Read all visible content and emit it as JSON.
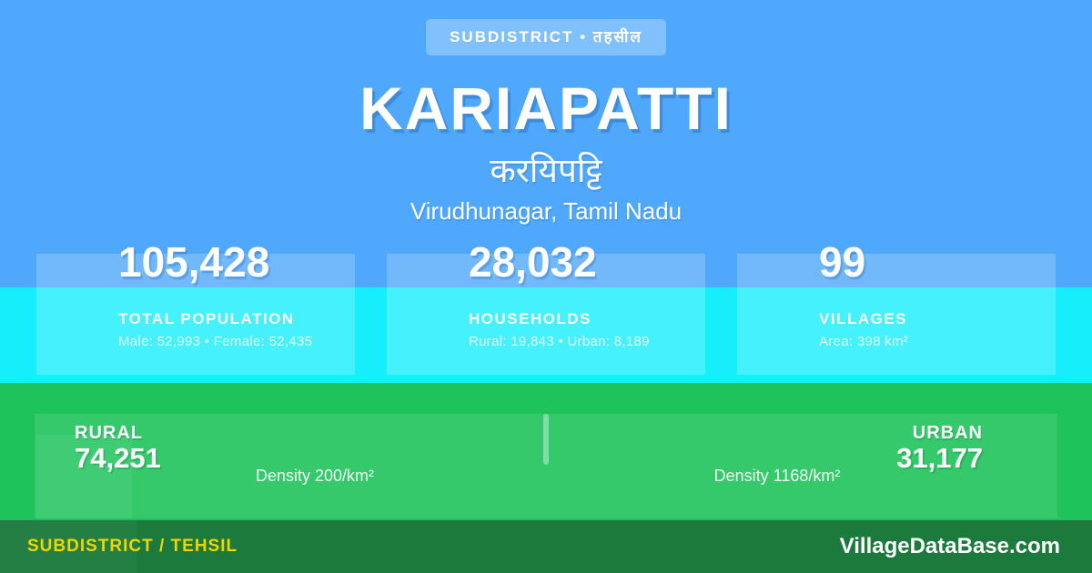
{
  "badge": {
    "label": "SUBDISTRICT • तहसील"
  },
  "title": "KARIAPATTI",
  "title_hindi": "करयिपट्टि",
  "location": "Virudhunagar, Tamil Nadu",
  "stats": [
    {
      "value": "105,428",
      "label": "TOTAL POPULATION",
      "detail": "Male: 52,993 • Female: 52,435"
    },
    {
      "value": "28,032",
      "label": "HOUSEHOLDS",
      "detail": "Rural: 19,843 • Urban: 8,189"
    },
    {
      "value": "99",
      "label": "VILLAGES",
      "detail": "Area: 398 km²"
    }
  ],
  "rural_urban": {
    "rural": {
      "label": "RURAL",
      "value": "74,251",
      "density": "Density 200/km²"
    },
    "urban": {
      "label": "URBAN",
      "value": "31,177",
      "density": "Density 1168/km²"
    }
  },
  "footer": {
    "left": "SUBDISTRICT / TEHSIL",
    "right": "VillageDataBase.com"
  },
  "colors": {
    "background_blue": "#4fa8fc",
    "cyan_band": "#17eefc",
    "green_band": "#1fc35c",
    "footer_green": "#1b7a3c",
    "footer_yellow": "#f0d500",
    "text_white": "#ffffff"
  }
}
